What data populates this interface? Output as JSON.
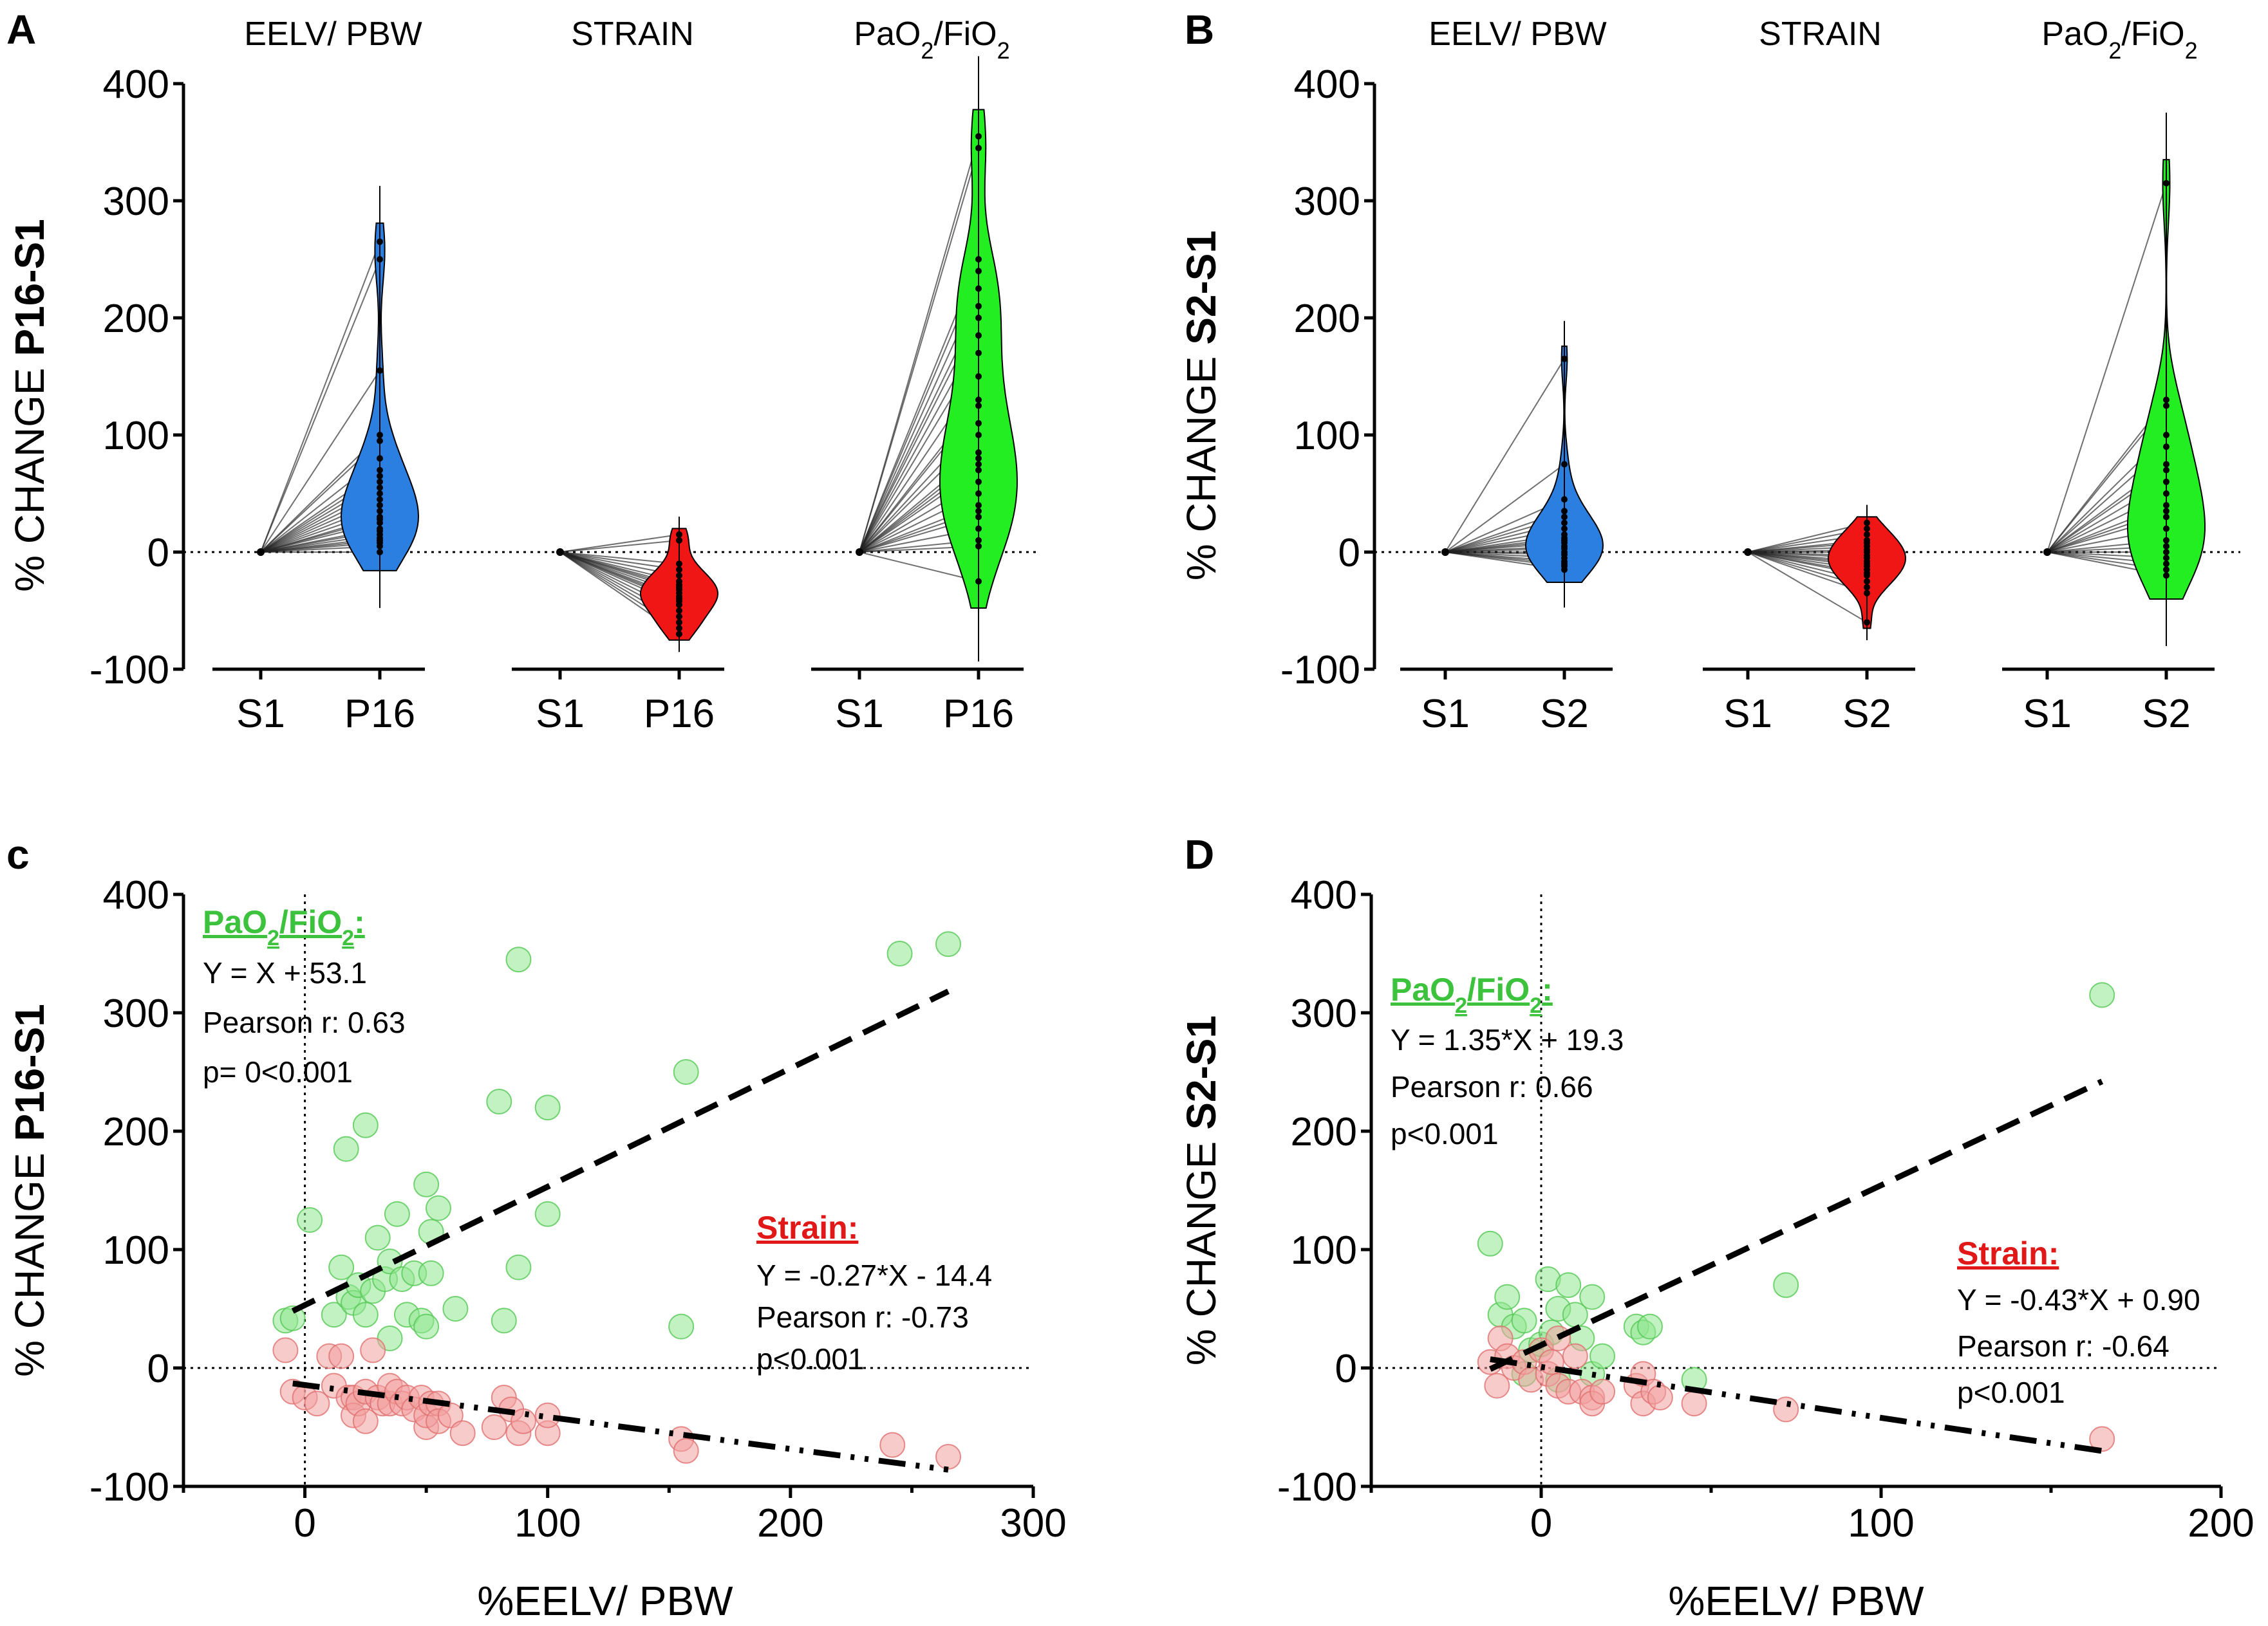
{
  "colors": {
    "eelv": "#2a7fe0",
    "strain": "#f01616",
    "pafi": "#22ee22",
    "scatter_green": "#8fe88f",
    "scatter_red": "#f2a0a0"
  },
  "chart_data": [
    {
      "panel": "A",
      "type": "violin",
      "ylabel_prefix": "% CHANGE ",
      "ylabel_bold": "P16-S1",
      "ylim": [
        -100,
        400
      ],
      "yticks": [
        -100,
        0,
        100,
        200,
        300,
        400
      ],
      "groups": [
        {
          "title": "EELV/ PBW",
          "x_labels": [
            "S1",
            "P16"
          ],
          "color_key": "eelv",
          "values": [
            265,
            250,
            155,
            100,
            95,
            80,
            70,
            65,
            60,
            55,
            50,
            45,
            40,
            35,
            30,
            28,
            25,
            20,
            18,
            15,
            12,
            10,
            8,
            5,
            0
          ]
        },
        {
          "title": "STRAIN",
          "x_labels": [
            "S1",
            "P16"
          ],
          "color_key": "strain",
          "values": [
            15,
            10,
            -10,
            -15,
            -20,
            -25,
            -28,
            -30,
            -32,
            -35,
            -38,
            -40,
            -42,
            -45,
            -50,
            -55,
            -60,
            -65,
            -70
          ]
        },
        {
          "title": "PaO2/FiO2",
          "title_parts": [
            "PaO",
            "2",
            "/FiO",
            "2"
          ],
          "x_labels": [
            "S1",
            "P16"
          ],
          "color_key": "pafi",
          "values": [
            355,
            345,
            250,
            240,
            225,
            210,
            200,
            185,
            170,
            150,
            130,
            125,
            110,
            100,
            85,
            80,
            75,
            70,
            60,
            50,
            40,
            35,
            30,
            20,
            10,
            5,
            -25
          ]
        }
      ]
    },
    {
      "panel": "B",
      "type": "violin",
      "ylabel_prefix": "% CHANGE ",
      "ylabel_bold": "S2-S1",
      "ylim": [
        -100,
        400
      ],
      "yticks": [
        -100,
        0,
        100,
        200,
        300,
        400
      ],
      "groups": [
        {
          "title": "EELV/ PBW",
          "x_labels": [
            "S1",
            "S2"
          ],
          "color_key": "eelv",
          "values": [
            165,
            75,
            45,
            35,
            30,
            25,
            20,
            15,
            12,
            10,
            8,
            5,
            3,
            0,
            -2,
            -5,
            -8,
            -10,
            -12,
            -15
          ]
        },
        {
          "title": "STRAIN",
          "x_labels": [
            "S1",
            "S2"
          ],
          "color_key": "strain",
          "values": [
            25,
            20,
            15,
            10,
            8,
            5,
            2,
            0,
            -3,
            -5,
            -8,
            -10,
            -12,
            -15,
            -18,
            -20,
            -25,
            -30,
            -35,
            -60
          ]
        },
        {
          "title": "PaO2/FiO2",
          "title_parts": [
            "PaO",
            "2",
            "/FiO",
            "2"
          ],
          "x_labels": [
            "S1",
            "S2"
          ],
          "color_key": "pafi",
          "values": [
            315,
            130,
            125,
            100,
            90,
            75,
            70,
            60,
            50,
            40,
            35,
            30,
            20,
            10,
            5,
            0,
            -5,
            -10,
            -15,
            -20
          ]
        }
      ]
    },
    {
      "panel": "c",
      "type": "scatter",
      "ylabel_prefix": "% CHANGE  ",
      "ylabel_bold": "P16-S1",
      "xlabel": "%EELV/ PBW",
      "xlim": [
        -50,
        300
      ],
      "ylim": [
        -100,
        400
      ],
      "xticks": [
        0,
        100,
        200,
        300
      ],
      "yticks": [
        -100,
        0,
        100,
        200,
        300,
        400
      ],
      "series": [
        {
          "name": "PaO2/FiO2",
          "color_key": "scatter_green",
          "points": [
            [
              -8,
              40
            ],
            [
              -5,
              42
            ],
            [
              2,
              125
            ],
            [
              12,
              45
            ],
            [
              15,
              85
            ],
            [
              17,
              185
            ],
            [
              18,
              60
            ],
            [
              20,
              55
            ],
            [
              22,
              70
            ],
            [
              25,
              45
            ],
            [
              25,
              205
            ],
            [
              28,
              65
            ],
            [
              30,
              110
            ],
            [
              33,
              75
            ],
            [
              35,
              25
            ],
            [
              35,
              90
            ],
            [
              38,
              130
            ],
            [
              40,
              75
            ],
            [
              42,
              45
            ],
            [
              45,
              80
            ],
            [
              48,
              40
            ],
            [
              50,
              35
            ],
            [
              50,
              155
            ],
            [
              52,
              80
            ],
            [
              52,
              115
            ],
            [
              55,
              135
            ],
            [
              62,
              50
            ],
            [
              80,
              225
            ],
            [
              82,
              40
            ],
            [
              88,
              345
            ],
            [
              88,
              85
            ],
            [
              100,
              220
            ],
            [
              100,
              130
            ],
            [
              155,
              35
            ],
            [
              157,
              250
            ],
            [
              245,
              350
            ],
            [
              265,
              358
            ]
          ],
          "fit": {
            "slope": 1,
            "intercept": 53.1,
            "x_range": [
              -5,
              265
            ]
          }
        },
        {
          "name": "Strain",
          "color_key": "scatter_red",
          "points": [
            [
              -8,
              15
            ],
            [
              -5,
              -20
            ],
            [
              0,
              -25
            ],
            [
              5,
              -30
            ],
            [
              10,
              10
            ],
            [
              12,
              -15
            ],
            [
              15,
              10
            ],
            [
              18,
              -25
            ],
            [
              20,
              -25
            ],
            [
              20,
              -40
            ],
            [
              22,
              -30
            ],
            [
              25,
              -45
            ],
            [
              25,
              -20
            ],
            [
              28,
              15
            ],
            [
              30,
              -25
            ],
            [
              32,
              -30
            ],
            [
              35,
              -30
            ],
            [
              35,
              -15
            ],
            [
              38,
              -20
            ],
            [
              40,
              -30
            ],
            [
              42,
              -25
            ],
            [
              45,
              -35
            ],
            [
              48,
              -25
            ],
            [
              50,
              -50
            ],
            [
              50,
              -40
            ],
            [
              52,
              -30
            ],
            [
              55,
              -30
            ],
            [
              55,
              -45
            ],
            [
              60,
              -40
            ],
            [
              65,
              -55
            ],
            [
              78,
              -50
            ],
            [
              82,
              -25
            ],
            [
              85,
              -35
            ],
            [
              88,
              -55
            ],
            [
              90,
              -45
            ],
            [
              100,
              -55
            ],
            [
              100,
              -40
            ],
            [
              155,
              -60
            ],
            [
              157,
              -70
            ],
            [
              242,
              -65
            ],
            [
              265,
              -75
            ]
          ],
          "fit": {
            "slope": -0.27,
            "intercept": -14.4,
            "x_range": [
              -5,
              265
            ]
          }
        }
      ],
      "annotations": {
        "green": {
          "title_parts": [
            "PaO",
            "2",
            "/FiO",
            "2",
            ":"
          ],
          "lines": [
            "Y = X + 53.1",
            "Pearson r: 0.63",
            "p= 0<0.001"
          ]
        },
        "red": {
          "title": "Strain:",
          "lines": [
            "Y = -0.27*X - 14.4",
            "Pearson r: -0.73",
            "p<0.001"
          ]
        }
      }
    },
    {
      "panel": "D",
      "type": "scatter",
      "ylabel_prefix": "% CHANGE  ",
      "ylabel_bold": "S2-S1",
      "xlabel": "%EELV/ PBW",
      "xlim": [
        -50,
        200
      ],
      "ylim": [
        -100,
        400
      ],
      "xticks": [
        0,
        100,
        200
      ],
      "yticks": [
        -100,
        0,
        100,
        200,
        300,
        400
      ],
      "series": [
        {
          "name": "PaO2/FiO2",
          "color_key": "scatter_green",
          "points": [
            [
              -15,
              105
            ],
            [
              -12,
              45
            ],
            [
              -10,
              60
            ],
            [
              -8,
              35
            ],
            [
              -5,
              40
            ],
            [
              -5,
              -5
            ],
            [
              -3,
              15
            ],
            [
              0,
              20
            ],
            [
              2,
              75
            ],
            [
              3,
              30
            ],
            [
              5,
              50
            ],
            [
              5,
              -10
            ],
            [
              8,
              70
            ],
            [
              10,
              45
            ],
            [
              12,
              25
            ],
            [
              15,
              60
            ],
            [
              15,
              -5
            ],
            [
              18,
              10
            ],
            [
              28,
              35
            ],
            [
              30,
              30
            ],
            [
              32,
              35
            ],
            [
              45,
              -10
            ],
            [
              72,
              70
            ],
            [
              165,
              315
            ]
          ],
          "fit": {
            "slope": 1.35,
            "intercept": 19.3,
            "x_range": [
              -15,
              165
            ]
          }
        },
        {
          "name": "Strain",
          "color_key": "scatter_red",
          "points": [
            [
              -15,
              5
            ],
            [
              -13,
              -15
            ],
            [
              -12,
              25
            ],
            [
              -10,
              10
            ],
            [
              -8,
              0
            ],
            [
              -5,
              5
            ],
            [
              -3,
              -10
            ],
            [
              0,
              15
            ],
            [
              2,
              -5
            ],
            [
              3,
              5
            ],
            [
              5,
              -15
            ],
            [
              5,
              25
            ],
            [
              8,
              -20
            ],
            [
              10,
              10
            ],
            [
              12,
              -20
            ],
            [
              15,
              -25
            ],
            [
              15,
              -30
            ],
            [
              18,
              -20
            ],
            [
              28,
              -15
            ],
            [
              30,
              -30
            ],
            [
              30,
              -5
            ],
            [
              33,
              -20
            ],
            [
              35,
              -25
            ],
            [
              45,
              -30
            ],
            [
              72,
              -35
            ],
            [
              165,
              -60
            ]
          ],
          "fit": {
            "slope": -0.43,
            "intercept": 0.9,
            "x_range": [
              -15,
              165
            ]
          }
        }
      ],
      "annotations": {
        "green": {
          "title_parts": [
            "PaO",
            "2",
            "/FiO",
            "2",
            ":"
          ],
          "lines": [
            "Y = 1.35*X + 19.3",
            "Pearson r: 0.66",
            "p<0.001"
          ]
        },
        "red": {
          "title": "Strain:",
          "lines": [
            "Y = -0.43*X + 0.90",
            "Pearson r: -0.64",
            "p<0.001"
          ]
        }
      }
    }
  ]
}
